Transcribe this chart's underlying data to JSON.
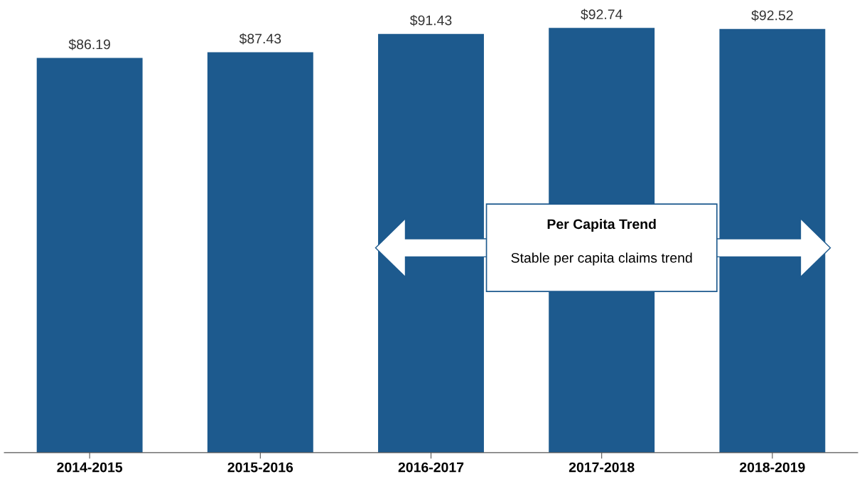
{
  "chart_data": {
    "type": "bar",
    "categories": [
      "2014-2015",
      "2015-2016",
      "2016-2017",
      "2017-2018",
      "2018-2019"
    ],
    "values": [
      86.19,
      87.43,
      91.43,
      92.74,
      92.52
    ],
    "value_labels": [
      "$86.19",
      "$87.43",
      "$91.43",
      "$92.74",
      "$92.52"
    ],
    "color": "#1d5a8e",
    "tick_labels": "x",
    "grid": false,
    "annotations": [
      "Per Capita Trend",
      "Stable per capita claims trend"
    ]
  }
}
